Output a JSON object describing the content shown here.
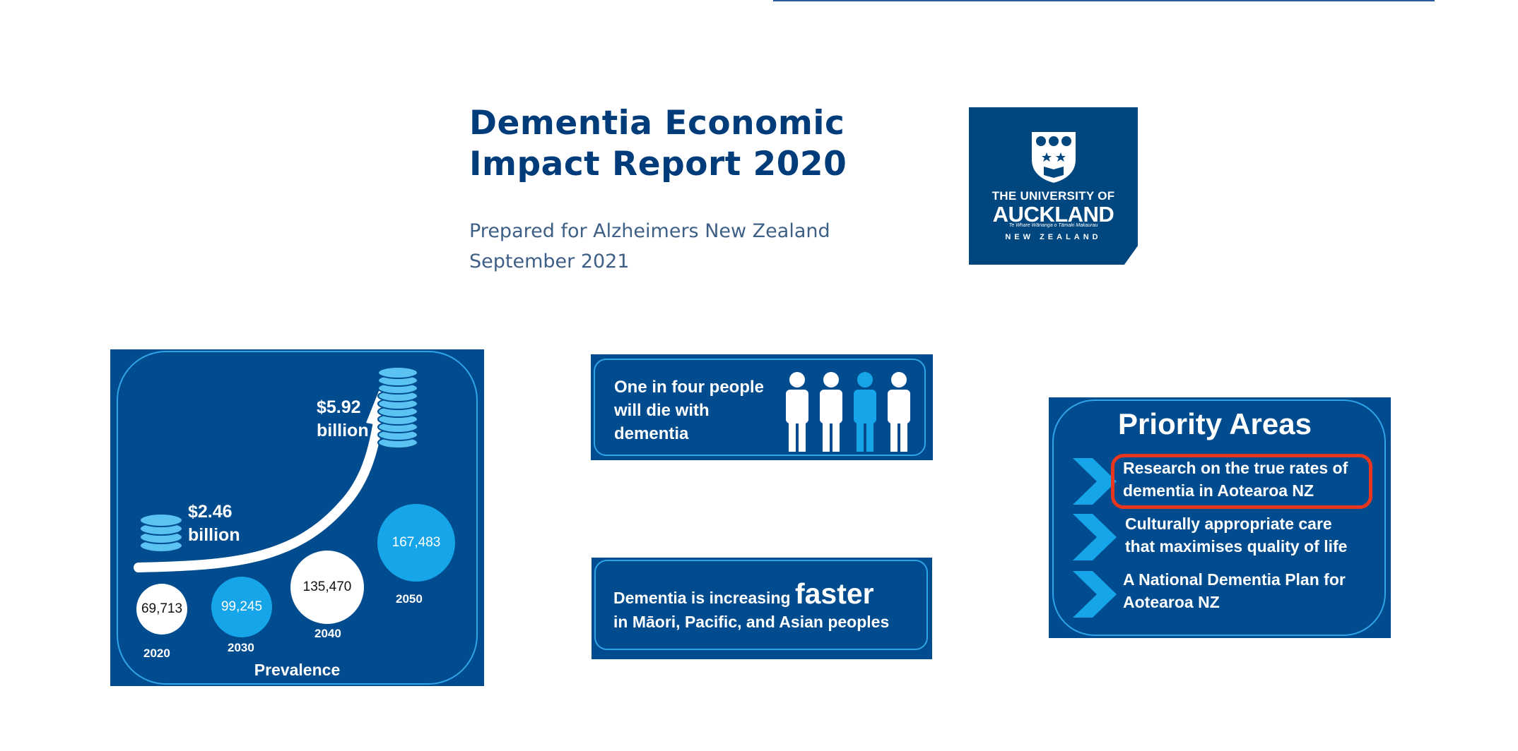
{
  "report": {
    "title_line1": "Dementia Economic",
    "title_line2": "Impact Report 2020",
    "prepared_for": "Prepared for Alzheimers New Zealand",
    "date": "September 2021"
  },
  "logo": {
    "line1": "THE UNIVERSITY OF",
    "line2": "AUCKLAND",
    "line3": "Te Whare Wānanga o Tāmaki Makaurau",
    "line4": "NEW ZEALAND"
  },
  "prevalence": {
    "label": "Prevalence",
    "cost_2020_value": "$2.46",
    "cost_2020_unit": "billion",
    "cost_2050_value": "$5.92",
    "cost_2050_unit": "billion",
    "points": [
      {
        "year": "2020",
        "value": "69,713"
      },
      {
        "year": "2030",
        "value": "99,245"
      },
      {
        "year": "2040",
        "value": "135,470"
      },
      {
        "year": "2050",
        "value": "167,483"
      }
    ]
  },
  "one_in_four": {
    "text": "One in four people\nwill die with\ndementia",
    "highlighted_person_index": 3,
    "people_count": 4
  },
  "faster": {
    "line1_prefix": "Dementia is increasing",
    "line1_emphasis": "faster",
    "line2": "in Māori, Pacific, and Asian peoples"
  },
  "priority": {
    "title": "Priority Areas",
    "items": [
      {
        "line1": "Research on the true rates of",
        "line2": "dementia in Aotearoa NZ"
      },
      {
        "line1": "Culturally appropriate care",
        "line2": "that maximises quality of life"
      },
      {
        "line1": "A National Dementia Plan for",
        "line2": "Aotearoa NZ"
      }
    ],
    "highlight_color": "#e8361f"
  },
  "colors": {
    "navy": "#004c8f",
    "accent_blue": "#16a5e8",
    "title_blue": "#003b7a"
  }
}
